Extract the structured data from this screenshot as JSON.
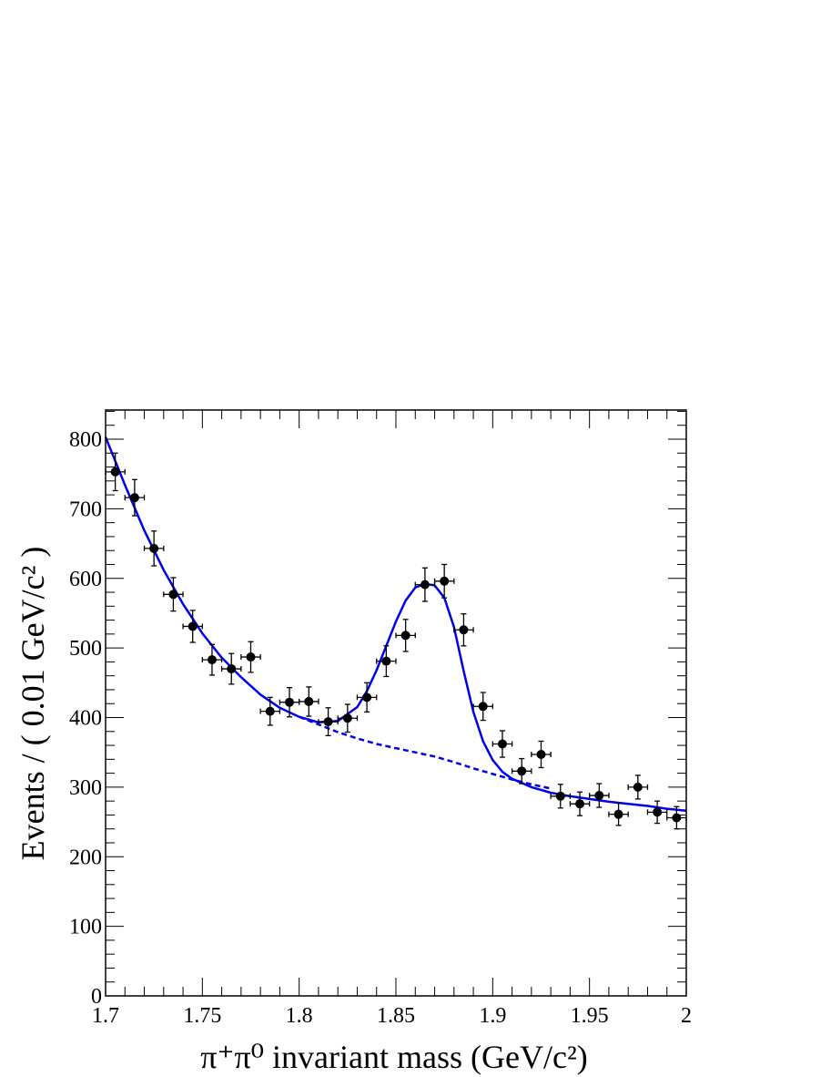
{
  "chart_data": {
    "type": "scatter",
    "xlabel": "π⁺π⁰ invariant mass (GeV/c²)",
    "ylabel": "Events / ( 0.01 GeV/c² )",
    "xlim": [
      1.7,
      2.0
    ],
    "ylim": [
      0,
      840
    ],
    "x_ticks": [
      {
        "value": 1.7,
        "label": "1.7"
      },
      {
        "value": 1.75,
        "label": "1.75"
      },
      {
        "value": 1.8,
        "label": "1.8"
      },
      {
        "value": 1.85,
        "label": "1.85"
      },
      {
        "value": 1.9,
        "label": "1.9"
      },
      {
        "value": 1.95,
        "label": "1.95"
      },
      {
        "value": 2.0,
        "label": "2"
      }
    ],
    "y_ticks": [
      {
        "value": 0,
        "label": "0"
      },
      {
        "value": 100,
        "label": "100"
      },
      {
        "value": 200,
        "label": "200"
      },
      {
        "value": 300,
        "label": "300"
      },
      {
        "value": 400,
        "label": "400"
      },
      {
        "value": 500,
        "label": "500"
      },
      {
        "value": 600,
        "label": "600"
      },
      {
        "value": 700,
        "label": "700"
      },
      {
        "value": 800,
        "label": "800"
      }
    ],
    "grid": false,
    "colors": {
      "points": "#000000",
      "fit": "#0000ee",
      "background": "#0000ee"
    },
    "data_points": {
      "x_error": 0.005,
      "x": [
        1.705,
        1.715,
        1.725,
        1.735,
        1.745,
        1.755,
        1.765,
        1.775,
        1.785,
        1.795,
        1.805,
        1.815,
        1.825,
        1.835,
        1.845,
        1.855,
        1.865,
        1.875,
        1.885,
        1.895,
        1.905,
        1.915,
        1.925,
        1.935,
        1.945,
        1.955,
        1.965,
        1.975,
        1.985,
        1.995
      ],
      "y": [
        753,
        716,
        643,
        577,
        531,
        483,
        470,
        487,
        409,
        422,
        423,
        394,
        399,
        429,
        481,
        518,
        591,
        596,
        526,
        416,
        362,
        323,
        347,
        287,
        276,
        288,
        261,
        300,
        264,
        256
      ],
      "y_error": [
        27,
        26,
        25,
        24,
        23,
        22,
        22,
        22,
        20,
        21,
        21,
        20,
        20,
        21,
        22,
        23,
        24,
        24,
        23,
        20,
        19,
        18,
        19,
        17,
        17,
        17,
        16,
        17,
        16,
        16
      ]
    },
    "fit_total": {
      "x": [
        1.7,
        1.71,
        1.72,
        1.73,
        1.74,
        1.75,
        1.76,
        1.77,
        1.78,
        1.79,
        1.8,
        1.81,
        1.82,
        1.83,
        1.835,
        1.84,
        1.845,
        1.85,
        1.855,
        1.86,
        1.865,
        1.87,
        1.875,
        1.88,
        1.885,
        1.89,
        1.895,
        1.9,
        1.905,
        1.91,
        1.92,
        1.93,
        1.94,
        1.95,
        1.96,
        1.97,
        1.98,
        1.99,
        2.0
      ],
      "y": [
        803,
        734,
        669,
        612,
        563,
        521,
        486,
        458,
        433,
        414,
        401,
        393,
        395,
        415,
        438,
        468,
        503,
        538,
        568,
        587,
        592,
        590,
        572,
        530,
        467,
        408,
        366,
        339,
        322,
        312,
        300,
        292,
        287,
        283,
        279,
        276,
        273,
        269,
        266
      ]
    },
    "fit_background": {
      "x": [
        1.8,
        1.81,
        1.82,
        1.83,
        1.84,
        1.85,
        1.86,
        1.87,
        1.88,
        1.89,
        1.9,
        1.91,
        1.92,
        1.93
      ],
      "y": [
        401,
        390,
        379,
        370,
        362,
        356,
        350,
        344,
        336,
        327,
        319,
        311,
        304,
        298
      ]
    }
  }
}
